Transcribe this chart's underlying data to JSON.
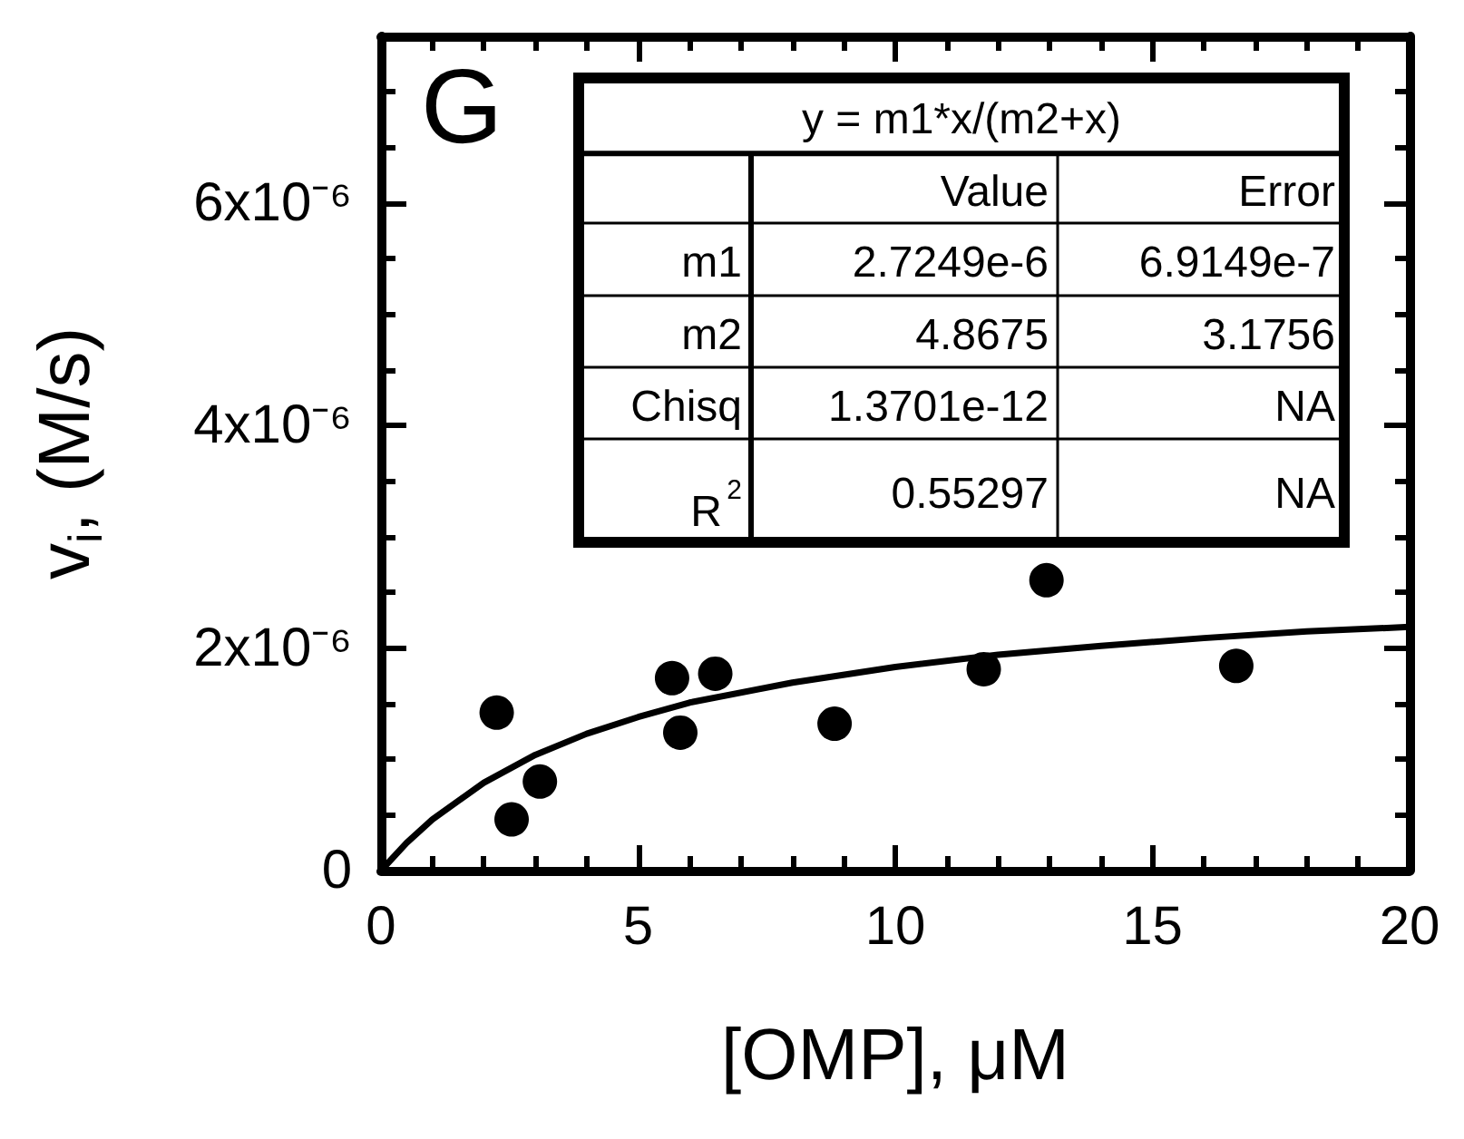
{
  "chart_data": {
    "type": "scatter",
    "xlabel": "[OMP], μM",
    "ylabel": "v$_{i}$, (M/s)",
    "xlim": [
      0,
      20
    ],
    "xticks": [
      0,
      5,
      10,
      15,
      20
    ],
    "ylim": [
      0,
      7.5e-06
    ],
    "yticks": [
      0,
      {
        "value": 2e-06,
        "label": "2x10⁻⁶"
      },
      {
        "value": 4e-06,
        "label": "4x10⁻⁶"
      },
      {
        "value": 6e-06,
        "label": "6x10⁻⁶"
      }
    ],
    "marker": "circle",
    "series": [
      {
        "color": "#000000",
        "x": [
          2.25,
          2.54,
          3.09,
          5.66,
          5.82,
          6.5,
          8.82,
          11.72,
          12.94,
          16.63
        ],
        "values": [
          1.42e-06,
          4.6e-07,
          8e-07,
          1.73e-06,
          1.24e-06,
          1.77e-06,
          1.32e-06,
          1.81e-06,
          2.61e-06,
          1.84e-06
        ]
      },
      {
        "type": "line",
        "color": "#000000",
        "marker": "none",
        "x": [
          0,
          0.5,
          1,
          2,
          3,
          4,
          5,
          6,
          8,
          10,
          12,
          14,
          16,
          18,
          20
        ],
        "values": [
          0,
          2.5e-07,
          4.6e-07,
          7.9e-07,
          1.04e-06,
          1.23e-06,
          1.38e-06,
          1.51e-06,
          1.69e-06,
          1.83e-06,
          1.94e-06,
          2.02e-06,
          2.09e-06,
          2.15e-06,
          2.19e-06
        ]
      }
    ],
    "annotations": [
      "G",
      "y = m1*x/(m2+x)",
      "Value",
      "Error",
      "m1",
      "2.7249e-6",
      "6.9149e-7",
      "m2",
      "4.8675",
      "3.1756",
      "Chisq",
      "1.3701e-12",
      "NA",
      "R$^{2}$",
      "0.55297",
      "NA"
    ]
  }
}
